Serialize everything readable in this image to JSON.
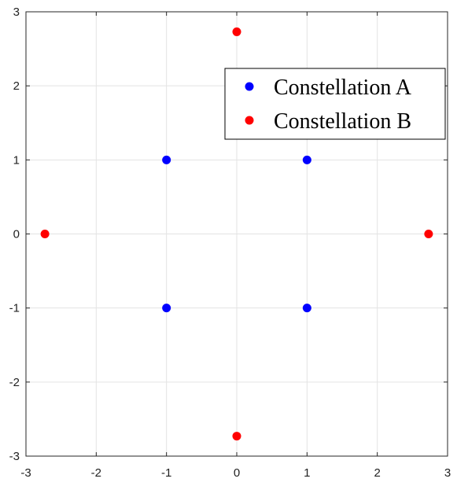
{
  "chart_data": {
    "type": "scatter",
    "title": "",
    "xlabel": "",
    "ylabel": "",
    "xlim": [
      -3,
      3
    ],
    "ylim": [
      -3,
      3
    ],
    "xticks": [
      -3,
      -2,
      -1,
      0,
      1,
      2,
      3
    ],
    "yticks": [
      -3,
      -2,
      -1,
      0,
      1,
      2,
      3
    ],
    "grid": true,
    "legend_position": "top-right",
    "series": [
      {
        "name": "Constellation A",
        "color": "#0000ff",
        "points": [
          [
            -1,
            1
          ],
          [
            1,
            1
          ],
          [
            -1,
            -1
          ],
          [
            1,
            -1
          ]
        ]
      },
      {
        "name": "Constellation B",
        "color": "#ff0000",
        "points": [
          [
            0,
            2.73
          ],
          [
            -2.73,
            0
          ],
          [
            2.73,
            0
          ],
          [
            0,
            -2.73
          ]
        ]
      }
    ]
  }
}
